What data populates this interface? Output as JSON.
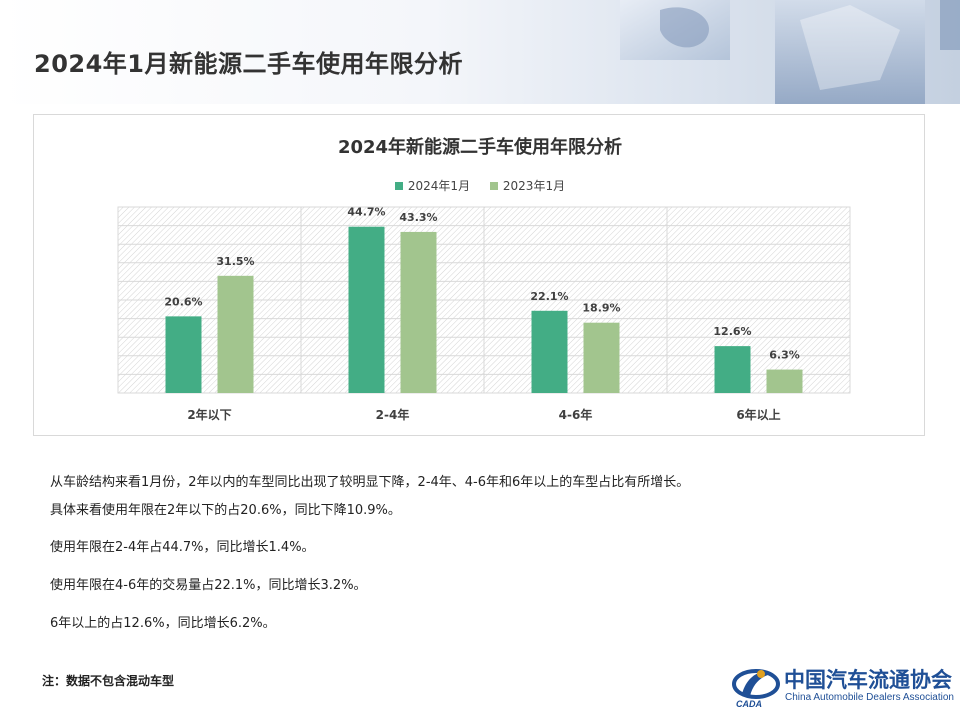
{
  "header": {
    "title": "2024年1月新能源二手车使用年限分析"
  },
  "colors": {
    "series_2024": "#43ad85",
    "series_2023": "#a2c58e",
    "logo_blue": "#1f4f96"
  },
  "chart_data": {
    "type": "bar",
    "title": "2024年新能源二手车使用年限分析",
    "categories": [
      "2年以下",
      "2-4年",
      "4-6年",
      "6年以上"
    ],
    "series": [
      {
        "name": "2024年1月",
        "values": [
          20.6,
          44.7,
          22.1,
          12.6
        ],
        "labels": [
          "20.6%",
          "44.7%",
          "22.1%",
          "12.6%"
        ]
      },
      {
        "name": "2023年1月",
        "values": [
          31.5,
          43.3,
          18.9,
          6.3
        ],
        "labels": [
          "31.5%",
          "43.3%",
          "18.9%",
          "6.3%"
        ]
      }
    ],
    "ylim": [
      0,
      50
    ],
    "legend_position": "top-center",
    "grid": true
  },
  "analysis": {
    "line1": "从车龄结构来看1月份，2年以内的车型同比出现了较明显下降，2-4年、4-6年和6年以上的车型占比有所增长。",
    "line2": "具体来看使用年限在2年以下的占20.6%，同比下降10.9%。",
    "line3": "使用年限在2-4年占44.7%，同比增长1.4%。",
    "line4": "使用年限在4-6年的交易量占22.1%，同比增长3.2%。",
    "line5": "6年以上的占12.6%，同比增长6.2%。"
  },
  "footnote": "注：数据不包含混动车型",
  "logo": {
    "cn": "中国汽车流通协会",
    "en": "China Automobile Dealers Association",
    "mark_text": "CADA"
  }
}
